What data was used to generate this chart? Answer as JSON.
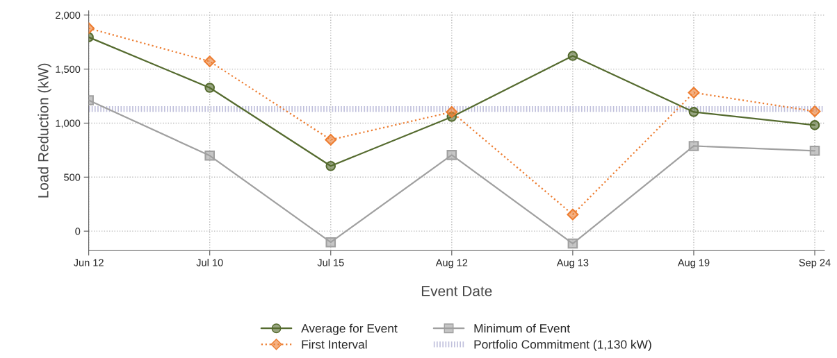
{
  "chart_data": {
    "type": "line",
    "xlabel": "Event Date",
    "ylabel": "Load Reduction (kW)",
    "categories": [
      "Jun 12",
      "Jul 10",
      "Jul 15",
      "Aug 12",
      "Aug 13",
      "Aug 19",
      "Sep 24"
    ],
    "series": [
      {
        "name": "Average for Event",
        "color": "#556b2f",
        "marker": "circle",
        "line_style": "solid",
        "values": [
          1795,
          1327,
          603,
          1058,
          1622,
          1103,
          981
        ]
      },
      {
        "name": "First Interval",
        "color": "#ed7d31",
        "marker": "diamond",
        "line_style": "dotted",
        "values": [
          1878,
          1571,
          846,
          1103,
          154,
          1282,
          1109
        ]
      },
      {
        "name": "Minimum of Event",
        "color": "#a0a0a0",
        "marker": "square",
        "line_style": "solid",
        "values": [
          1212,
          699,
          -103,
          705,
          -115,
          788,
          744
        ]
      }
    ],
    "ref_lines": [
      {
        "axis": "y",
        "value": 1130,
        "label": "Portfolio Commitment (1,130 kW)",
        "color": "#c0c0dc",
        "line_style": "dotted"
      }
    ],
    "ylim": [
      -180,
      2040
    ],
    "yticks": [
      0,
      {
        "value": 500,
        "label": "500"
      },
      {
        "value": 1000,
        "label": "1,000"
      },
      {
        "value": 1500,
        "label": "1,500"
      },
      {
        "value": 2000,
        "label": "2,000"
      }
    ],
    "grid": true,
    "legend": "bottom"
  }
}
